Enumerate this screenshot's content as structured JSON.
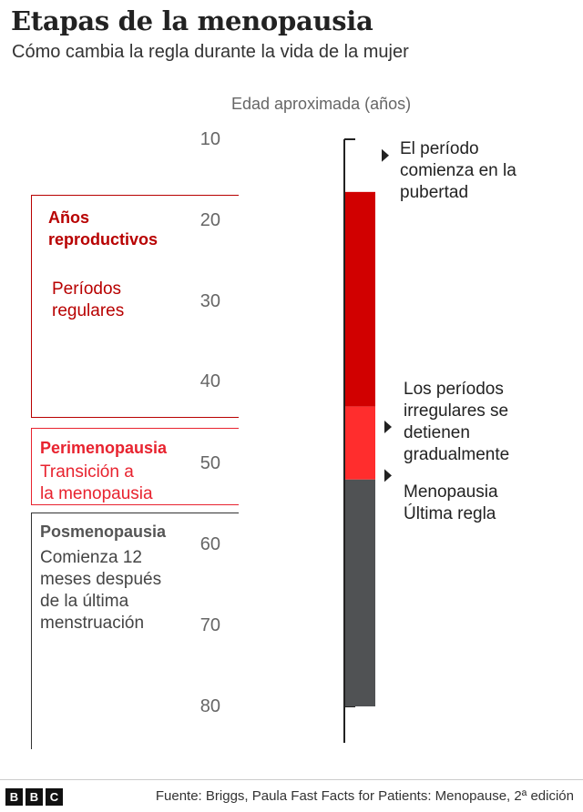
{
  "title": "Etapas de la menopausia",
  "subtitle": "Cómo cambia la regla durante la vida de la mujer",
  "chart_data": {
    "type": "bar",
    "orientation": "vertical-range",
    "axis_title": "Edad aproximada (años)",
    "ylim": [
      10,
      84.5
    ],
    "ticks": [
      10,
      20,
      30,
      40,
      50,
      60,
      70,
      80
    ],
    "tick_labels": [
      "10",
      "20",
      "30",
      "40",
      "50",
      "60",
      "70",
      "80"
    ],
    "segments": [
      {
        "name": "reproductive",
        "start": 16.5,
        "end": 43,
        "color": "#d10000"
      },
      {
        "name": "irregular",
        "start": 43,
        "end": 52,
        "color": "#ff2d2d"
      },
      {
        "name": "post",
        "start": 52,
        "end": 80,
        "color": "#505254"
      }
    ],
    "phases": [
      {
        "name": "reproductive",
        "start": 16.5,
        "end": 43,
        "title": "Años reproductivos",
        "description": "Períodos regulares"
      },
      {
        "name": "peri",
        "start": 45,
        "end": 54.5,
        "title": "Perimenopausia",
        "description": "Transición a la menopausia"
      },
      {
        "name": "post",
        "start": 55.5,
        "end": 84.5,
        "title": "Posmenopausia",
        "description": "Comienza 12 meses después de la última menstruación"
      }
    ],
    "annotations": [
      {
        "age": 12,
        "text": "El período comienza en la pubertad"
      },
      {
        "age": 45.5,
        "text": "Los períodos irregulares se detienen gradualmente"
      },
      {
        "age": 51.5,
        "text": "Menopausia Última regla"
      }
    ]
  },
  "ui": {
    "rep_title_l1": "Años",
    "rep_title_l2": "reproductivos",
    "rep_desc_l1": "Períodos",
    "rep_desc_l2": "regulares",
    "peri_title": "Perimenopausia",
    "peri_desc_l1": "Transición a",
    "peri_desc_l2": "la menopausia",
    "post_title": "Posmenopausia",
    "post_desc_l1": "Comienza 12",
    "post_desc_l2": "meses después",
    "post_desc_l3": "de la última",
    "post_desc_l4": "menstruación",
    "ann1_l1": "El período",
    "ann1_l2": "comienza en la",
    "ann1_l3": "pubertad",
    "ann2_l1": "Los períodos",
    "ann2_l2": "irregulares se",
    "ann2_l3": "detienen",
    "ann2_l4": "gradualmente",
    "ann3_l1": "Menopausia",
    "ann3_l2": "Última regla"
  },
  "footer": {
    "logo_letters": [
      "B",
      "B",
      "C"
    ],
    "source": "Fuente: Briggs, Paula Fast Facts for Patients: Menopause, 2ª edición"
  }
}
